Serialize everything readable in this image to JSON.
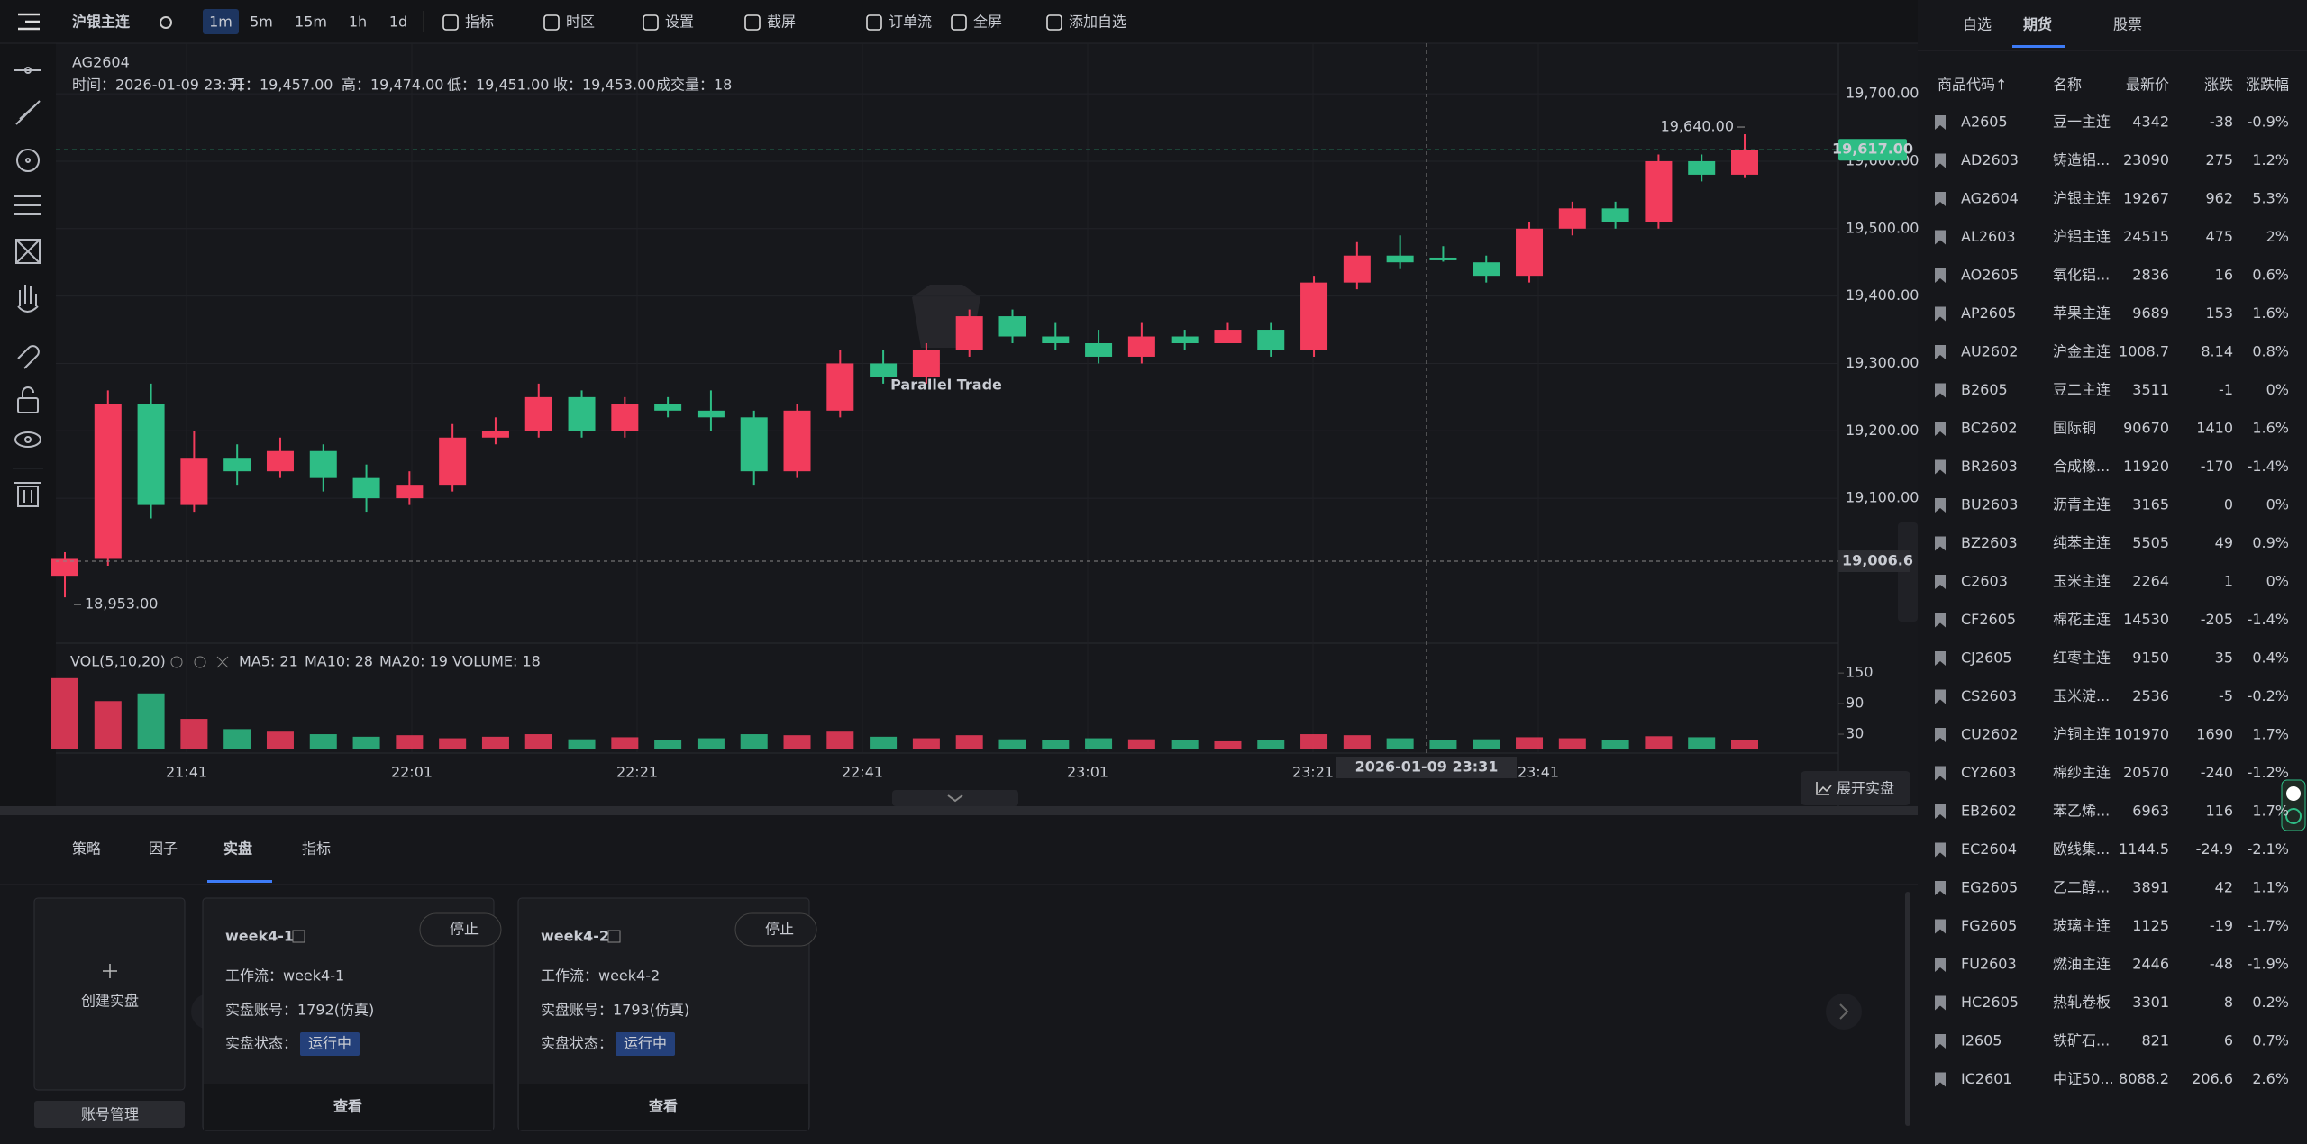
{
  "toolbar": {
    "symbol": "沪银主连",
    "timeframes": [
      "1m",
      "5m",
      "15m",
      "1h",
      "1d"
    ],
    "active_timeframe": 0,
    "tools": [
      "指标",
      "时区",
      "设置",
      "截屏",
      "订单流",
      "全屏",
      "添加自选"
    ]
  },
  "chart_data": {
    "type": "candlestick",
    "symbol": "AG2604",
    "info": [
      "时间：2026-01-09 23:31",
      "开：19,457.00",
      "高：19,474.00",
      "低：19,451.00",
      "收：19,453.00",
      "成交量：18"
    ],
    "watermark": "Parallel Trade",
    "up_color": "#f23c5c",
    "down_color": "#2ebd85",
    "open": [
      18985,
      19010,
      19240,
      19090,
      19160,
      19140,
      19170,
      19130,
      19100,
      19120,
      19190,
      19200,
      19250,
      19200,
      19240,
      19230,
      19220,
      19140,
      19230,
      19300,
      19280,
      19320,
      19370,
      19340,
      19330,
      19310,
      19340,
      19330,
      19350,
      19320,
      19420,
      19460,
      19457,
      19450,
      19430,
      19500,
      19530,
      19510,
      19600,
      19580
    ],
    "high": [
      19020,
      19260,
      19270,
      19200,
      19180,
      19190,
      19180,
      19150,
      19140,
      19210,
      19220,
      19270,
      19260,
      19250,
      19250,
      19260,
      19230,
      19240,
      19320,
      19320,
      19330,
      19380,
      19380,
      19360,
      19350,
      19360,
      19350,
      19360,
      19360,
      19430,
      19480,
      19490,
      19474,
      19460,
      19510,
      19540,
      19540,
      19610,
      19610,
      19640
    ],
    "low": [
      18953,
      19000,
      19070,
      19080,
      19120,
      19130,
      19110,
      19080,
      19090,
      19110,
      19180,
      19190,
      19190,
      19190,
      19220,
      19200,
      19120,
      19130,
      19220,
      19270,
      19270,
      19310,
      19330,
      19320,
      19300,
      19300,
      19320,
      19330,
      19310,
      19310,
      19410,
      19440,
      19451,
      19420,
      19420,
      19490,
      19500,
      19500,
      19570,
      19575
    ],
    "close": [
      19010,
      19240,
      19090,
      19160,
      19140,
      19170,
      19130,
      19100,
      19120,
      19190,
      19200,
      19250,
      19200,
      19240,
      19230,
      19220,
      19140,
      19230,
      19300,
      19280,
      19320,
      19370,
      19340,
      19330,
      19310,
      19340,
      19330,
      19350,
      19320,
      19420,
      19460,
      19450,
      19453,
      19430,
      19500,
      19530,
      19510,
      19600,
      19580,
      19617
    ],
    "volume": [
      140,
      95,
      110,
      60,
      40,
      35,
      30,
      25,
      28,
      22,
      25,
      30,
      20,
      24,
      18,
      22,
      30,
      28,
      35,
      25,
      22,
      28,
      20,
      18,
      22,
      20,
      18,
      16,
      18,
      30,
      28,
      22,
      18,
      20,
      24,
      22,
      18,
      26,
      24,
      18
    ],
    "ylim": [
      18885,
      19775
    ],
    "yticks": [
      {
        "value": 19100,
        "label": "19,100.00"
      },
      {
        "value": 19200,
        "label": "19,200.00"
      },
      {
        "value": 19300,
        "label": "19,300.00"
      },
      {
        "value": 19400,
        "label": "19,400.00"
      },
      {
        "value": 19500,
        "label": "19,500.00"
      },
      {
        "value": 19600,
        "label": "19,600.00"
      },
      {
        "value": 19700,
        "label": "19,700.00"
      }
    ],
    "vlim": [
      0,
      198
    ],
    "vticks": [
      30,
      90,
      150
    ],
    "time_labels": [
      "21:41",
      "22:01",
      "22:21",
      "22:41",
      "23:01",
      "23:21",
      "23:41"
    ],
    "last_price": {
      "value": 19617,
      "label": "19,617.00"
    },
    "crosshair_price": {
      "value": 19006.6,
      "label": "19,006.6"
    },
    "crosshair_time": "2026-01-09 23:31",
    "high_label": {
      "value": 19640,
      "label": "19,640.00"
    },
    "low_label": {
      "value": 18953,
      "label": "18,953.00"
    },
    "vol_title": "VOL(5,10,20)",
    "vol_ma": [
      "MA5: 21",
      "MA10: 28",
      "MA20: 19",
      "VOLUME: 18"
    ],
    "expand": "展开实盘"
  },
  "watchlist": {
    "tabs": [
      "自选",
      "期货",
      "股票"
    ],
    "active_tab": 1,
    "headers": [
      "商品代码↑",
      "名称",
      "最新价",
      "涨跌",
      "涨跌幅"
    ],
    "rows": [
      [
        "A2605",
        "豆一主连",
        4342,
        -38,
        "-0.9%"
      ],
      [
        "AD2603",
        "铸造铝...",
        23090,
        275,
        "1.2%"
      ],
      [
        "AG2604",
        "沪银主连",
        19267,
        962,
        "5.3%"
      ],
      [
        "AL2603",
        "沪铝主连",
        24515,
        475,
        "2%"
      ],
      [
        "AO2605",
        "氧化铝...",
        2836,
        16,
        "0.6%"
      ],
      [
        "AP2605",
        "苹果主连",
        9689,
        153,
        "1.6%"
      ],
      [
        "AU2602",
        "沪金主连",
        1008.7,
        8.14,
        "0.8%"
      ],
      [
        "B2605",
        "豆二主连",
        3511,
        -1,
        "0%"
      ],
      [
        "BC2602",
        "国际铜",
        90670,
        1410,
        "1.6%"
      ],
      [
        "BR2603",
        "合成橡...",
        11920,
        -170,
        "-1.4%"
      ],
      [
        "BU2603",
        "沥青主连",
        3165,
        0,
        "0%"
      ],
      [
        "BZ2603",
        "纯苯主连",
        5505,
        49,
        "0.9%"
      ],
      [
        "C2603",
        "玉米主连",
        2264,
        1,
        "0%"
      ],
      [
        "CF2605",
        "棉花主连",
        14530,
        -205,
        "-1.4%"
      ],
      [
        "CJ2605",
        "红枣主连",
        9150,
        35,
        "0.4%"
      ],
      [
        "CS2603",
        "玉米淀...",
        2536,
        -5,
        "-0.2%"
      ],
      [
        "CU2602",
        "沪铜主连",
        101970,
        1690,
        "1.7%"
      ],
      [
        "CY2603",
        "棉纱主连",
        20570,
        -240,
        "-1.2%"
      ],
      [
        "EB2602",
        "苯乙烯...",
        6963,
        116,
        "1.7%"
      ],
      [
        "EC2604",
        "欧线集...",
        1144.5,
        -24.9,
        "-2.1%"
      ],
      [
        "EG2605",
        "乙二醇...",
        3891,
        42,
        "1.1%"
      ],
      [
        "FG2605",
        "玻璃主连",
        1125,
        -19,
        "-1.7%"
      ],
      [
        "FU2603",
        "燃油主连",
        2446,
        -48,
        "-1.9%"
      ],
      [
        "HC2605",
        "热轧卷板",
        3301,
        8,
        "0.2%"
      ],
      [
        "I2605",
        "铁矿石...",
        821,
        6,
        "0.7%"
      ],
      [
        "IC2601",
        "中证50...",
        8088.2,
        206.6,
        "2.6%"
      ]
    ]
  },
  "bottom": {
    "tabs": [
      "策略",
      "因子",
      "实盘",
      "指标"
    ],
    "active_tab": 2,
    "create": "创建实盘",
    "accounts": "账号管理",
    "cards": [
      {
        "title": "week4-1",
        "stop": "停止",
        "workflow": "工作流：week4-1",
        "account": "实盘账号：1792(仿真)",
        "status_label": "实盘状态：",
        "status": "运行中",
        "view": "查看"
      },
      {
        "title": "week4-2",
        "stop": "停止",
        "workflow": "工作流：week4-2",
        "account": "实盘账号：1793(仿真)",
        "status_label": "实盘状态：",
        "status": "运行中",
        "view": "查看"
      }
    ]
  }
}
